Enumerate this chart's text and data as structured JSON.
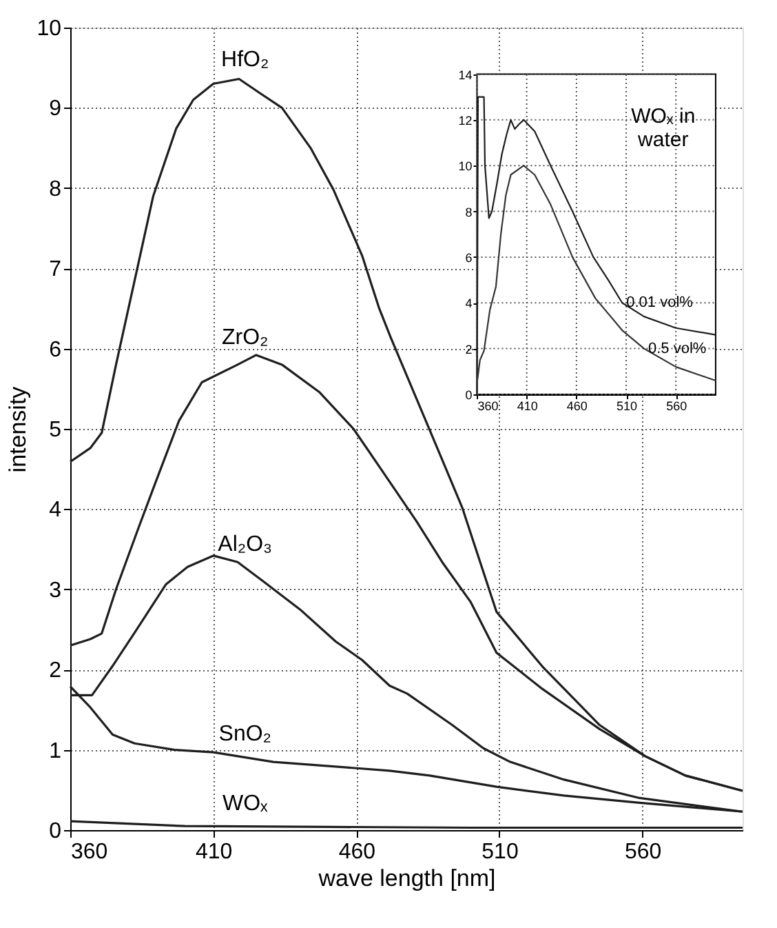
{
  "chart_data": [
    {
      "type": "line",
      "xlabel": "wave length [nm]",
      "ylabel": "intensity",
      "xlim": [
        360,
        595
      ],
      "xticks": [
        360,
        410,
        460,
        510,
        560
      ],
      "ylim": [
        0,
        10
      ],
      "yticks": [
        0,
        1,
        2,
        3,
        4,
        5,
        6,
        7,
        8,
        9,
        10
      ],
      "grid": true,
      "series": [
        {
          "name": "HfO₂",
          "color": "#1e1e1e",
          "x": [
            360,
            367,
            371,
            376,
            383,
            389,
            397,
            403,
            410,
            419,
            426,
            434,
            444,
            452,
            462,
            468,
            472,
            489,
            497,
            509,
            525,
            545,
            561,
            575,
            595
          ],
          "values": [
            4.59,
            4.76,
            4.95,
            5.8,
            6.93,
            7.9,
            8.74,
            9.1,
            9.3,
            9.36,
            9.19,
            9,
            8.5,
            7.98,
            7.16,
            6.5,
            6.14,
            4.7,
            4.02,
            2.72,
            2.04,
            1.31,
            0.92,
            0.68,
            0.49
          ]
        },
        {
          "name": "ZrO₂",
          "color": "#1e1e1e",
          "x": [
            360,
            367,
            371,
            376,
            384,
            390,
            398,
            406,
            418.5,
            425,
            434,
            447,
            459,
            468,
            481,
            490,
            500,
            509,
            525,
            545,
            561,
            575,
            595
          ],
          "values": [
            2.3,
            2.38,
            2.45,
            3.0,
            3.78,
            4.35,
            5.1,
            5.58,
            5.8,
            5.92,
            5.8,
            5.46,
            5.0,
            4.53,
            3.85,
            3.34,
            2.84,
            2.21,
            1.76,
            1.26,
            0.92,
            0.68,
            0.49
          ]
        },
        {
          "name": "Al₂O₃",
          "color": "#1e1e1e",
          "x": [
            360,
            367.6,
            374.7,
            382.5,
            393.4,
            401,
            410,
            418.5,
            427.8,
            440.3,
            452.8,
            462,
            471.6,
            477.8,
            493.5,
            504.4,
            513.8,
            532.5,
            559,
            595
          ],
          "values": [
            1.68,
            1.68,
            2.04,
            2.46,
            3.06,
            3.28,
            3.42,
            3.34,
            3.09,
            2.75,
            2.35,
            2.12,
            1.8,
            1.7,
            1.31,
            1.02,
            0.85,
            0.63,
            0.4,
            0.23
          ]
        },
        {
          "name": "SnO₂",
          "color": "#1e1e1e",
          "x": [
            360,
            367,
            374.8,
            382.5,
            396.5,
            410,
            431,
            449.5,
            471.6,
            485.6,
            509,
            532.5,
            559,
            595
          ],
          "values": [
            1.79,
            1.53,
            1.19,
            1.08,
            1.0,
            0.97,
            0.85,
            0.8,
            0.74,
            0.68,
            0.54,
            0.43,
            0.34,
            0.23
          ]
        },
        {
          "name": "WOₓ",
          "color": "#1e1e1e",
          "x": [
            360,
            380,
            400,
            450,
            500,
            550,
            595
          ],
          "values": [
            0.11,
            0.08,
            0.05,
            0.04,
            0.03,
            0.03,
            0.03
          ]
        }
      ]
    },
    {
      "type": "line",
      "title": "WOₓ in\nwater",
      "xlim": [
        360,
        600
      ],
      "xticks": [
        360,
        410,
        460,
        510,
        560
      ],
      "ylim": [
        0,
        14
      ],
      "yticks": [
        0,
        2,
        4,
        6,
        8,
        10,
        12,
        14
      ],
      "grid": true,
      "series": [
        {
          "color": "#1e1e1e",
          "x": [
            360,
            360.5,
            361,
            367,
            368,
            372,
            375,
            380,
            385,
            390,
            394,
            398,
            402,
            407,
            418,
            434,
            456,
            477,
            492,
            506,
            528,
            560,
            600
          ],
          "values": [
            0,
            6,
            13,
            13,
            10,
            7.7,
            8,
            9.2,
            10.5,
            11.4,
            12,
            11.6,
            11.8,
            12,
            11.5,
            10,
            8,
            6,
            5,
            4,
            3.4,
            2.9,
            2.6
          ]
        },
        {
          "color": "#333333",
          "x": [
            360,
            363,
            367,
            373,
            379,
            384,
            389,
            394,
            407,
            418,
            434,
            456,
            479,
            506,
            528,
            560,
            600
          ],
          "values": [
            0.5,
            1.5,
            1.9,
            3.7,
            4.7,
            7,
            8.7,
            9.6,
            10,
            9.6,
            8.3,
            6,
            4.2,
            2.8,
            2,
            1.2,
            0.6
          ]
        }
      ],
      "annotations": [
        {
          "text": "0.01 vol%",
          "x": 506,
          "y": 4
        },
        {
          "text": "0.5 vol%",
          "x": 528,
          "y": 2
        }
      ]
    }
  ]
}
